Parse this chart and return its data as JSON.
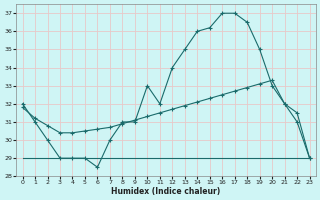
{
  "xlabel": "Humidex (Indice chaleur)",
  "background_color": "#cff5f5",
  "grid_color": "#e8c8c8",
  "line_color": "#1a6b6b",
  "xlim": [
    -0.5,
    23.5
  ],
  "ylim": [
    28,
    37.5
  ],
  "yticks": [
    28,
    29,
    30,
    31,
    32,
    33,
    34,
    35,
    36,
    37
  ],
  "xticks": [
    0,
    1,
    2,
    3,
    4,
    5,
    6,
    7,
    8,
    9,
    10,
    11,
    12,
    13,
    14,
    15,
    16,
    17,
    18,
    19,
    20,
    21,
    22,
    23
  ],
  "line1_x": [
    0,
    1,
    2,
    3,
    4,
    5,
    6,
    7,
    8,
    9,
    10,
    11,
    12,
    13,
    14,
    15,
    16,
    17,
    18,
    19,
    20,
    21,
    22,
    23
  ],
  "line1_y": [
    32,
    31,
    30,
    29,
    29,
    29,
    28.5,
    30,
    31,
    31.0,
    33,
    32,
    34,
    35,
    36,
    36.2,
    37,
    37,
    36.5,
    35,
    33,
    32,
    31,
    29
  ],
  "line2_x": [
    0,
    1,
    2,
    3,
    4,
    5,
    6,
    7,
    8,
    9,
    10,
    11,
    12,
    13,
    14,
    15,
    16,
    17,
    18,
    19,
    20,
    21,
    22,
    23
  ],
  "line2_y": [
    31.8,
    31.2,
    30.8,
    30.4,
    30.4,
    30.5,
    30.6,
    30.7,
    30.9,
    31.1,
    31.3,
    31.5,
    31.7,
    31.9,
    32.1,
    32.3,
    32.5,
    32.7,
    32.9,
    33.1,
    33.3,
    32.0,
    31.5,
    29
  ],
  "line3_x": [
    0,
    23
  ],
  "line3_y": [
    29,
    29
  ]
}
